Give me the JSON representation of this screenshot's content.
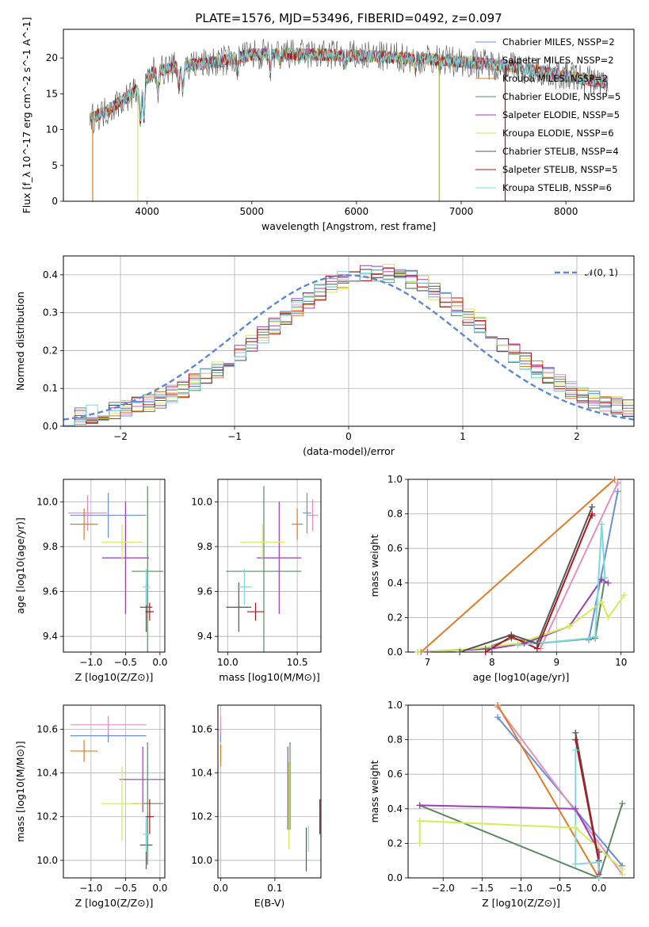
{
  "figure": {
    "title": "PLATE=1576, MJD=53496, FIBERID=0492, z=0.097"
  },
  "models": [
    {
      "name": "Chabrier MILES, N$_{SSP}$=2",
      "legend": "Chabrier MILES, NSSP=2",
      "color": "#6a8fd8"
    },
    {
      "name": "Salpeter MILES, N$_{SSP}$=2",
      "legend": "Salpeter MILES, NSSP=2",
      "color": "#e48fbf"
    },
    {
      "name": "Kroupa MILES, N$_{SSP}$=2",
      "legend": "Kroupa MILES, NSSP=2",
      "color": "#e07b27"
    },
    {
      "name": "Chabrier ELODIE, N$_{SSP}$=5",
      "legend": "Chabrier ELODIE, NSSP=5",
      "color": "#5b8a62"
    },
    {
      "name": "Salpeter ELODIE, N$_{SSP}$=5",
      "legend": "Salpeter ELODIE, NSSP=5",
      "color": "#9b3fb5"
    },
    {
      "name": "Kroupa ELODIE, N$_{SSP}$=6",
      "legend": "Kroupa ELODIE, NSSP=6",
      "color": "#d4ec5c"
    },
    {
      "name": "Chabrier STELIB, N$_{SSP}$=4",
      "legend": "Chabrier STELIB, NSSP=4",
      "color": "#555555"
    },
    {
      "name": "Salpeter STELIB, N$_{SSP}$=5",
      "legend": "Salpeter STELIB, NSSP=5",
      "color": "#b0151e"
    },
    {
      "name": "Kroupa STELIB, N$_{SSP}$=6",
      "legend": "Kroupa STELIB, NSSP=6",
      "color": "#7fd8de"
    }
  ],
  "chart_data": [
    {
      "id": "spectrum",
      "type": "line",
      "xlabel": "wavelength [Angstrom, rest frame]",
      "ylabel": "Flux [f_λ 10^-17 erg cm^-2 s^-1 A^-1]",
      "xlim": [
        3200,
        8650
      ],
      "ylim": [
        0,
        24
      ],
      "xticks": [
        4000,
        5000,
        6000,
        7000,
        8000
      ],
      "yticks": [
        0,
        5,
        10,
        15,
        20
      ],
      "grid": false,
      "legend_position": "right",
      "wavelength_range": [
        3450,
        8400
      ],
      "continuum_knots": {
        "x": [
          3450,
          3600,
          3800,
          3950,
          4050,
          4300,
          4700,
          5000,
          5500,
          6000,
          6500,
          7000,
          7500,
          8000,
          8400
        ],
        "y": [
          11.5,
          12.5,
          14.5,
          16,
          18,
          18.8,
          19.5,
          20.5,
          20.5,
          20.3,
          20,
          19.5,
          18.8,
          17.5,
          16.5
        ]
      },
      "absorption_features": [
        {
          "x": 3934,
          "depth": 5
        },
        {
          "x": 3969,
          "depth": 5
        },
        {
          "x": 4102,
          "depth": 2.5
        },
        {
          "x": 4304,
          "depth": 3
        },
        {
          "x": 4340,
          "depth": 3.5
        },
        {
          "x": 4861,
          "depth": 2
        },
        {
          "x": 5175,
          "depth": 2.5
        },
        {
          "x": 5270,
          "depth": 1.2
        },
        {
          "x": 5892,
          "depth": 1.5
        },
        {
          "x": 6563,
          "depth": 1.5
        },
        {
          "x": 7600,
          "depth": 1
        }
      ],
      "drop_lines": [
        {
          "x": 3480,
          "color": "#e07b27"
        },
        {
          "x": 3910,
          "color": "#d4ec5c"
        },
        {
          "x": 6790,
          "color": "#a7b24a"
        },
        {
          "x": 7420,
          "color": "#b0151e"
        }
      ]
    },
    {
      "id": "residuals",
      "type": "bar",
      "xlabel": "(data-model)/error",
      "ylabel": "Normed distribution",
      "xlim": [
        -2.5,
        2.5
      ],
      "ylim": [
        0,
        0.45
      ],
      "xticks": [
        -2,
        -1,
        0,
        1,
        2
      ],
      "yticks": [
        0.0,
        0.1,
        0.2,
        0.3,
        0.4
      ],
      "grid": true,
      "bin_width": 0.1,
      "bins_start": -2.5,
      "bins_end": 2.5,
      "reference_curve": {
        "label": "$\\mathcal{N}(0,1)$",
        "display": "𝒩(0, 1)",
        "mu": 0,
        "sigma": 1,
        "color": "#5b87d8"
      },
      "legend_position": "top-right"
    },
    {
      "id": "age-vs-Z",
      "type": "scatter",
      "xlabel": "Z [log10(Z/Z⊙)]",
      "ylabel": "age [log10(age/yr)]",
      "xlim": [
        -1.4,
        0.07
      ],
      "ylim": [
        9.33,
        10.1
      ],
      "xticks": [
        -1.0,
        -0.5,
        0.0
      ],
      "yticks": [
        9.4,
        9.6,
        9.8,
        10.0
      ],
      "grid": true,
      "points": [
        {
          "model": 0,
          "x": -0.75,
          "y": 9.94,
          "xerr": 0.55,
          "yerr": 0.1
        },
        {
          "model": 1,
          "x": -1.05,
          "y": 9.95,
          "xerr": 0.28,
          "yerr": 0.08
        },
        {
          "model": 2,
          "x": -1.1,
          "y": 9.9,
          "xerr": 0.2,
          "yerr": 0.07
        },
        {
          "model": 3,
          "x": -0.18,
          "y": 9.69,
          "xerr": 0.23,
          "yerr": 0.38
        },
        {
          "model": 4,
          "x": -0.5,
          "y": 9.75,
          "xerr": 0.34,
          "yerr": 0.25
        },
        {
          "model": 5,
          "x": -0.55,
          "y": 9.82,
          "xerr": 0.3,
          "yerr": 0.08
        },
        {
          "model": 6,
          "x": -0.2,
          "y": 9.53,
          "xerr": 0.09,
          "yerr": 0.11
        },
        {
          "model": 7,
          "x": -0.15,
          "y": 9.51,
          "xerr": 0.06,
          "yerr": 0.04
        },
        {
          "model": 8,
          "x": -0.2,
          "y": 9.62,
          "xerr": 0.05,
          "yerr": 0.08
        }
      ]
    },
    {
      "id": "age-vs-mass",
      "type": "scatter",
      "xlabel": "mass [log10(M/M⊙)]",
      "ylabel": "",
      "xlim": [
        9.93,
        10.67
      ],
      "ylim": [
        9.33,
        10.1
      ],
      "xticks": [
        10.0,
        10.5
      ],
      "yticks": [
        9.4,
        9.6,
        9.8,
        10.0
      ],
      "grid": true,
      "points": [
        {
          "model": 0,
          "x": 10.57,
          "y": 9.95,
          "xerr": 0.03,
          "yerr": 0.09
        },
        {
          "model": 1,
          "x": 10.61,
          "y": 9.94,
          "xerr": 0.04,
          "yerr": 0.07
        },
        {
          "model": 2,
          "x": 10.5,
          "y": 9.9,
          "xerr": 0.04,
          "yerr": 0.07
        },
        {
          "model": 3,
          "x": 10.26,
          "y": 9.69,
          "xerr": 0.27,
          "yerr": 0.38
        },
        {
          "model": 4,
          "x": 10.37,
          "y": 9.75,
          "xerr": 0.16,
          "yerr": 0.25
        },
        {
          "model": 5,
          "x": 10.25,
          "y": 9.82,
          "xerr": 0.16,
          "yerr": 0.08
        },
        {
          "model": 6,
          "x": 10.08,
          "y": 9.53,
          "xerr": 0.09,
          "yerr": 0.11
        },
        {
          "model": 7,
          "x": 10.2,
          "y": 9.51,
          "xerr": 0.06,
          "yerr": 0.04
        },
        {
          "model": 8,
          "x": 10.12,
          "y": 9.62,
          "xerr": 0.05,
          "yerr": 0.08
        }
      ]
    },
    {
      "id": "mass-weight-vs-age",
      "type": "line",
      "xlabel": "age [log10(age/yr)]",
      "ylabel": "mass weight",
      "xlim": [
        6.7,
        10.2
      ],
      "ylim": [
        0,
        1.0
      ],
      "xticks": [
        7,
        8,
        9,
        10
      ],
      "yticks": [
        0.0,
        0.2,
        0.4,
        0.6,
        0.8,
        1.0
      ],
      "grid": true,
      "series": [
        {
          "model": 0,
          "x": [
            9.5,
            9.95
          ],
          "y": [
            0.07,
            0.93
          ]
        },
        {
          "model": 1,
          "x": [
            8.75,
            9.95
          ],
          "y": [
            0.02,
            0.98
          ]
        },
        {
          "model": 2,
          "x": [
            6.9,
            9.9
          ],
          "y": [
            0.0,
            1.0
          ]
        },
        {
          "model": 3,
          "x": [
            6.85,
            7.9,
            8.3,
            8.7,
            9.6,
            9.75
          ],
          "y": [
            0.0,
            0.02,
            0.08,
            0.05,
            0.08,
            0.43
          ]
        },
        {
          "model": 4,
          "x": [
            7.0,
            8.0,
            8.5,
            9.2,
            9.7,
            9.8
          ],
          "y": [
            0.0,
            0.02,
            0.05,
            0.15,
            0.42,
            0.4
          ]
        },
        {
          "model": 5,
          "x": [
            6.85,
            7.5,
            8.4,
            9.2,
            9.7,
            9.8,
            10.05
          ],
          "y": [
            0.0,
            0.01,
            0.05,
            0.15,
            0.29,
            0.2,
            0.33
          ]
        },
        {
          "model": 6,
          "x": [
            7.5,
            8.3,
            8.7,
            9.55
          ],
          "y": [
            0.0,
            0.1,
            0.05,
            0.84
          ]
        },
        {
          "model": 7,
          "x": [
            7.9,
            8.3,
            8.7,
            9.55,
            9.55
          ],
          "y": [
            0.0,
            0.09,
            0.02,
            0.8,
            0.79
          ]
        },
        {
          "model": 8,
          "x": [
            8.4,
            9.5,
            9.6,
            9.7,
            9.75
          ],
          "y": [
            0.04,
            0.08,
            0.09,
            0.74,
            0.43
          ]
        }
      ]
    },
    {
      "id": "mass-vs-Z",
      "type": "scatter",
      "xlabel": "Z [log10(Z/Z⊙)]",
      "ylabel": "mass [log10(M/M⊙)]",
      "xlim": [
        -1.4,
        0.07
      ],
      "ylim": [
        9.92,
        10.71
      ],
      "xticks": [
        -1.0,
        -0.5,
        0.0
      ],
      "yticks": [
        10.0,
        10.2,
        10.4,
        10.6
      ],
      "grid": true,
      "points": [
        {
          "model": 0,
          "x": -0.75,
          "y": 10.57,
          "xerr": 0.55,
          "yerr": 0.03
        },
        {
          "model": 1,
          "x": -0.75,
          "y": 10.62,
          "xerr": 0.55,
          "yerr": 0.04
        },
        {
          "model": 2,
          "x": -1.1,
          "y": 10.5,
          "xerr": 0.2,
          "yerr": 0.05
        },
        {
          "model": 3,
          "x": -0.18,
          "y": 10.26,
          "xerr": 0.23,
          "yerr": 0.28
        },
        {
          "model": 4,
          "x": -0.25,
          "y": 10.37,
          "xerr": 0.34,
          "yerr": 0.15
        },
        {
          "model": 5,
          "x": -0.55,
          "y": 10.26,
          "xerr": 0.3,
          "yerr": 0.17
        },
        {
          "model": 6,
          "x": -0.2,
          "y": 10.07,
          "xerr": 0.09,
          "yerr": 0.11
        },
        {
          "model": 7,
          "x": -0.15,
          "y": 10.2,
          "xerr": 0.06,
          "yerr": 0.08
        },
        {
          "model": 8,
          "x": -0.2,
          "y": 10.12,
          "xerr": 0.05,
          "yerr": 0.08
        }
      ]
    },
    {
      "id": "mass-vs-ebv",
      "type": "scatter",
      "xlabel": "E(B-V)",
      "ylabel": "",
      "xlim": [
        -0.005,
        0.185
      ],
      "ylim": [
        9.92,
        10.71
      ],
      "xticks": [
        0.0,
        0.1
      ],
      "yticks": [
        10.0,
        10.2,
        10.4,
        10.6
      ],
      "grid": true,
      "points": [
        {
          "model": 0,
          "x": 0.0,
          "y": 10.57,
          "xerr": 0,
          "yerr": 0.03
        },
        {
          "model": 1,
          "x": 0.0,
          "y": 10.62,
          "xerr": 0,
          "yerr": 0.04
        },
        {
          "model": 2,
          "x": 0.0,
          "y": 10.48,
          "xerr": 0,
          "yerr": 0.05
        },
        {
          "model": 3,
          "x": 0.128,
          "y": 10.34,
          "xerr": 0,
          "yerr": 0.2
        },
        {
          "model": 4,
          "x": 0.124,
          "y": 10.33,
          "xerr": 0,
          "yerr": 0.19
        },
        {
          "model": 5,
          "x": 0.126,
          "y": 10.25,
          "xerr": 0,
          "yerr": 0.2
        },
        {
          "model": 6,
          "x": 0.158,
          "y": 10.05,
          "xerr": 0,
          "yerr": 0.1
        },
        {
          "model": 7,
          "x": 0.183,
          "y": 10.2,
          "xerr": 0,
          "yerr": 0.08
        },
        {
          "model": 8,
          "x": 0.162,
          "y": 10.1,
          "xerr": 0,
          "yerr": 0.06
        }
      ]
    },
    {
      "id": "mass-weight-vs-Z",
      "type": "line",
      "xlabel": "Z [log10(Z/Z⊙)]",
      "ylabel": "mass weight",
      "xlim": [
        -2.45,
        0.45
      ],
      "ylim": [
        0,
        1.0
      ],
      "xticks": [
        -2.0,
        -1.5,
        -1.0,
        -0.5,
        0.0
      ],
      "yticks": [
        0.0,
        0.2,
        0.4,
        0.6,
        0.8,
        1.0
      ],
      "grid": true,
      "series": [
        {
          "model": 0,
          "x": [
            -1.3,
            0.3
          ],
          "y": [
            0.93,
            0.07
          ]
        },
        {
          "model": 1,
          "x": [
            -1.3,
            0.3
          ],
          "y": [
            0.99,
            0.02
          ]
        },
        {
          "model": 2,
          "x": [
            -1.3,
            0.0
          ],
          "y": [
            1.0,
            0.0
          ]
        },
        {
          "model": 3,
          "x": [
            -2.3,
            0.0,
            0.3
          ],
          "y": [
            0.42,
            0.0,
            0.43
          ]
        },
        {
          "model": 4,
          "x": [
            -2.3,
            -0.3,
            0.0,
            0.0
          ],
          "y": [
            0.42,
            0.4,
            0.15,
            0.02
          ]
        },
        {
          "model": 5,
          "x": [
            -2.3,
            -2.3,
            -0.3,
            0.3,
            0.3
          ],
          "y": [
            0.2,
            0.33,
            0.29,
            0.05,
            0.02
          ]
        },
        {
          "model": 6,
          "x": [
            -0.3,
            0.0,
            0.0
          ],
          "y": [
            0.84,
            0.1,
            0.0
          ]
        },
        {
          "model": 7,
          "x": [
            -0.3,
            0.0,
            0.0
          ],
          "y": [
            0.8,
            0.09,
            0.0
          ]
        },
        {
          "model": 8,
          "x": [
            -0.3,
            -0.3,
            0.0,
            0.0
          ],
          "y": [
            0.74,
            0.08,
            0.09,
            0.0
          ]
        }
      ]
    }
  ]
}
